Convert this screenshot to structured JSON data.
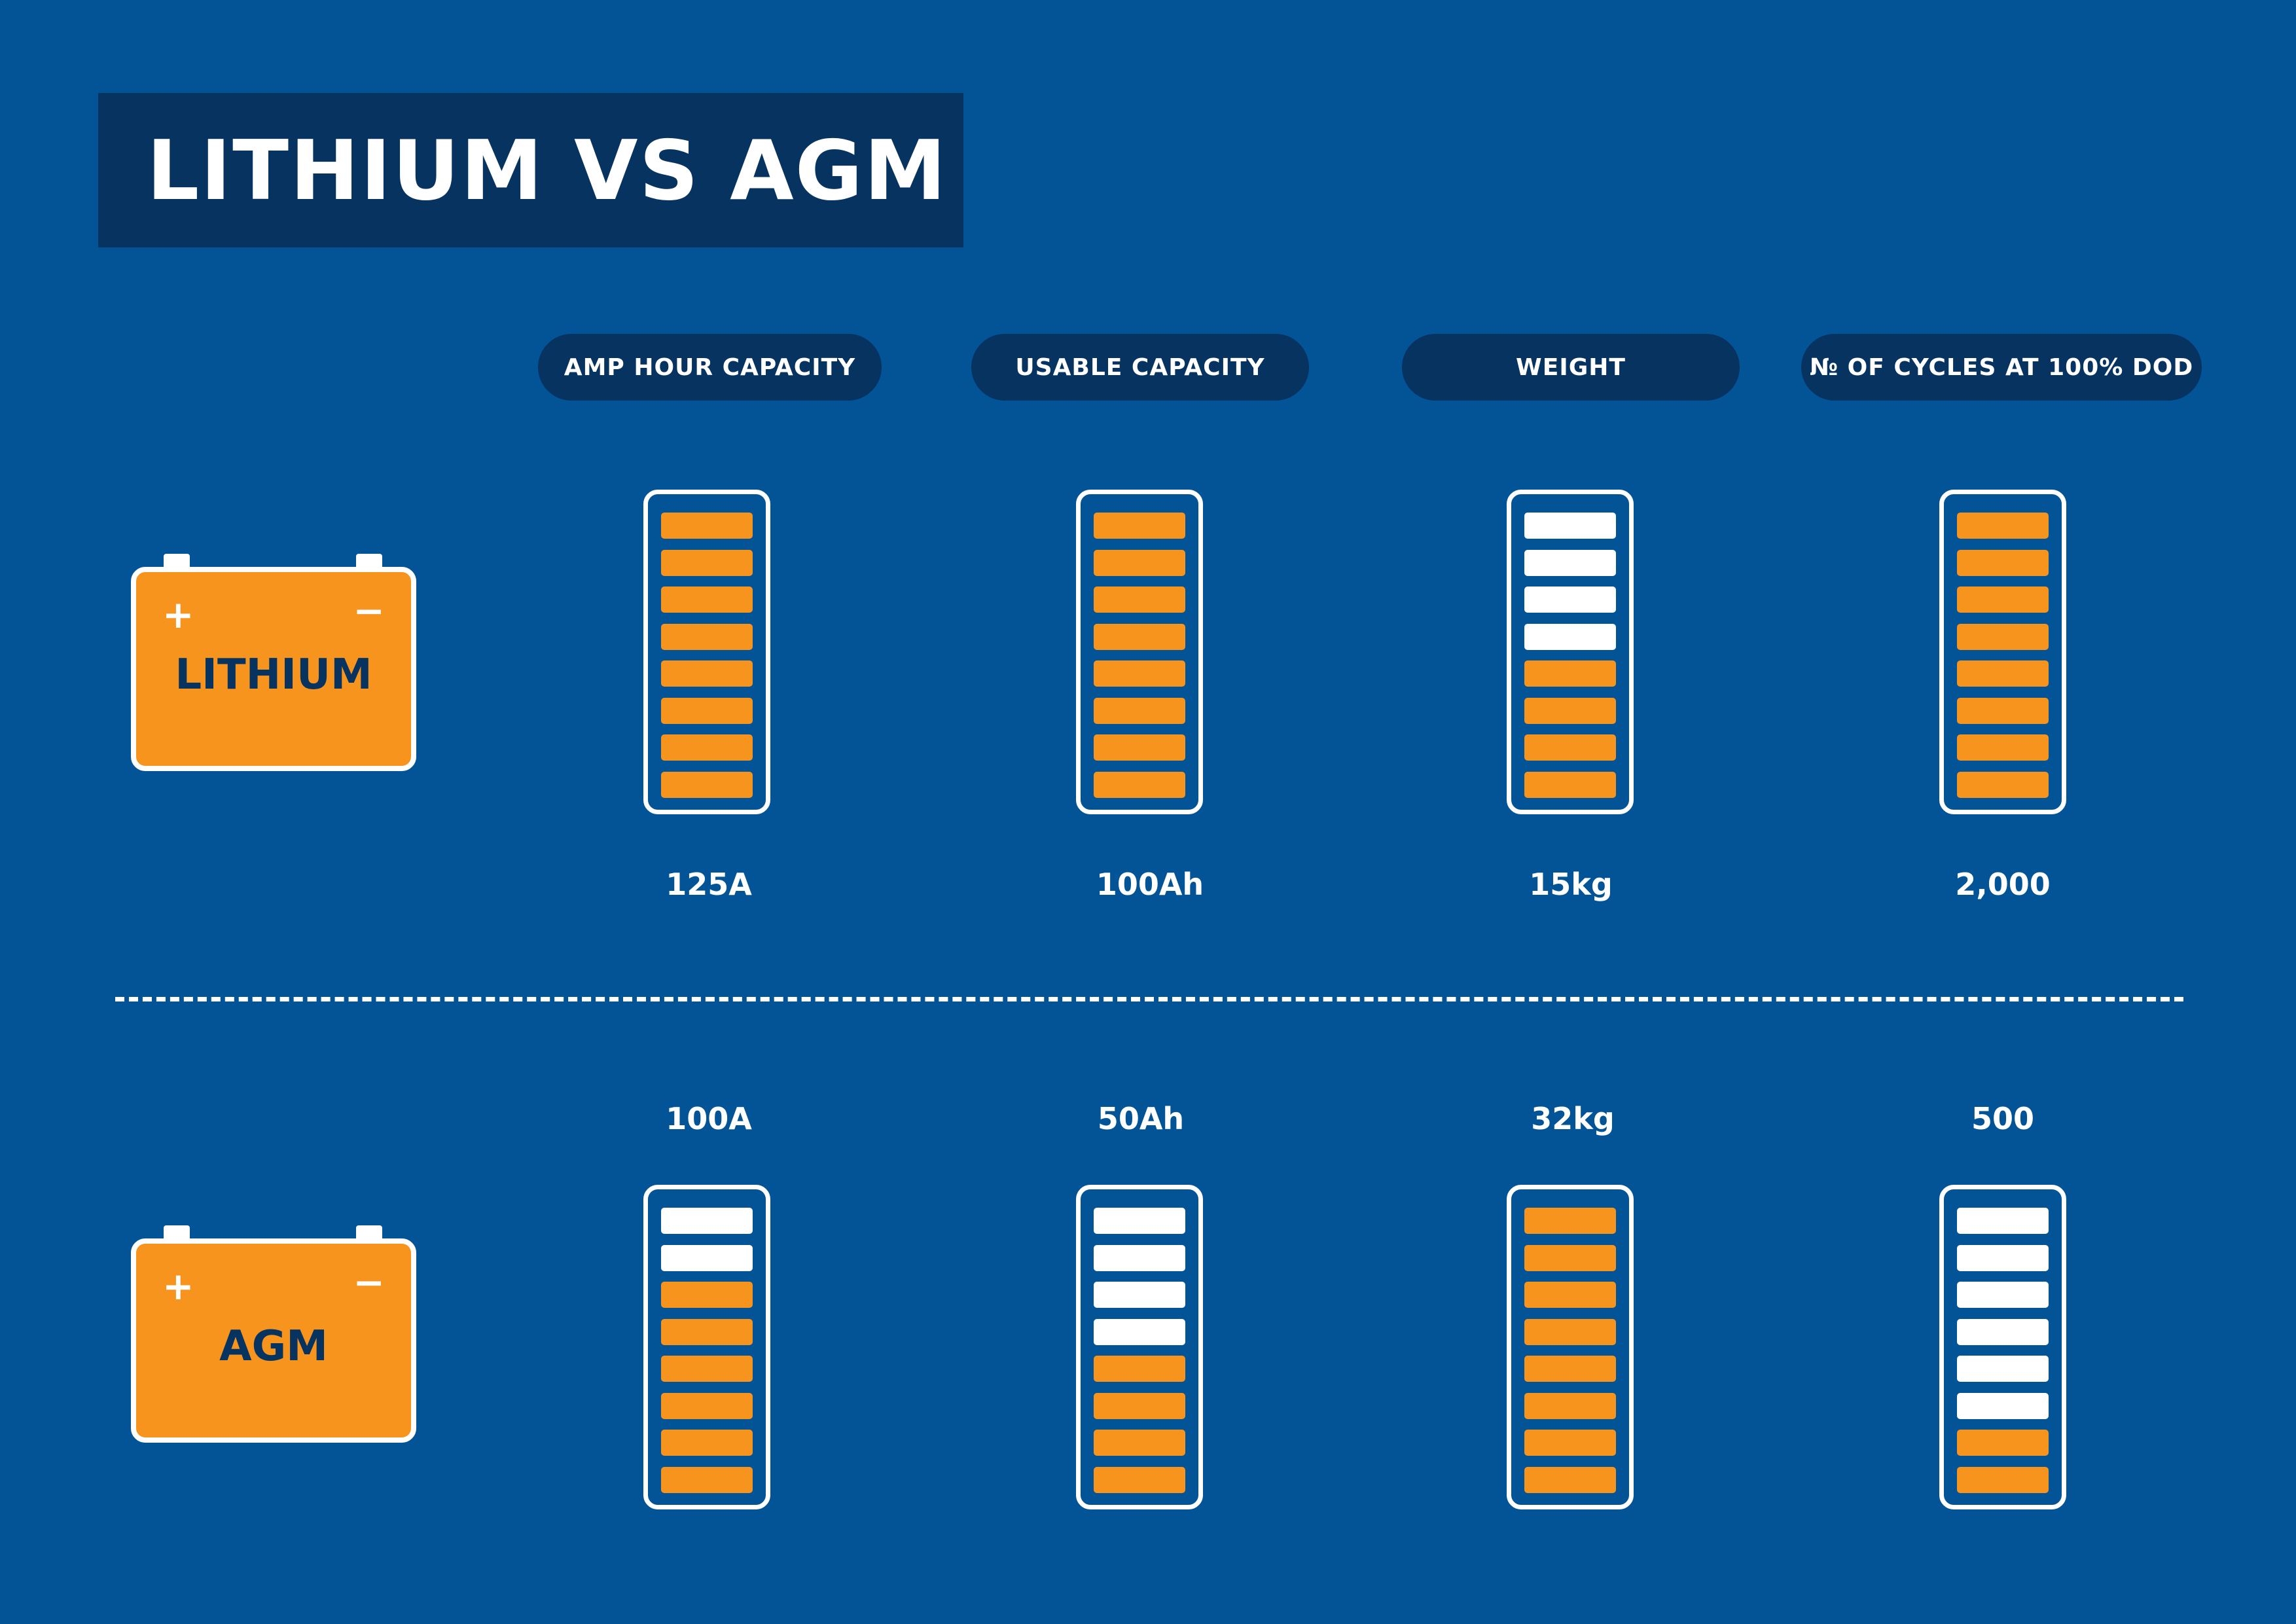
{
  "title": "LITHIUM VS AGM",
  "colors": {
    "background": "#035497",
    "dark_navy": "#063360",
    "orange": "#f7941d",
    "white": "#ffffff"
  },
  "columns": [
    {
      "header": "AMP HOUR CAPACITY"
    },
    {
      "header": "USABLE CAPACITY"
    },
    {
      "header": "WEIGHT"
    },
    {
      "header": "№ OF CYCLES AT 100% DOD"
    }
  ],
  "segments_per_meter": 8,
  "rows": [
    {
      "battery_label": "LITHIUM",
      "plus_sign": "+",
      "minus_sign": "−",
      "icon": "battery-icon",
      "values": [
        "125A",
        "100Ah",
        "15kg",
        "2,000"
      ],
      "filled_segments": [
        8,
        8,
        4,
        8
      ]
    },
    {
      "battery_label": "AGM",
      "plus_sign": "+",
      "minus_sign": "−",
      "icon": "battery-icon",
      "values": [
        "100A",
        "50Ah",
        "32kg",
        "500"
      ],
      "filled_segments": [
        6,
        4,
        8,
        2
      ]
    }
  ]
}
